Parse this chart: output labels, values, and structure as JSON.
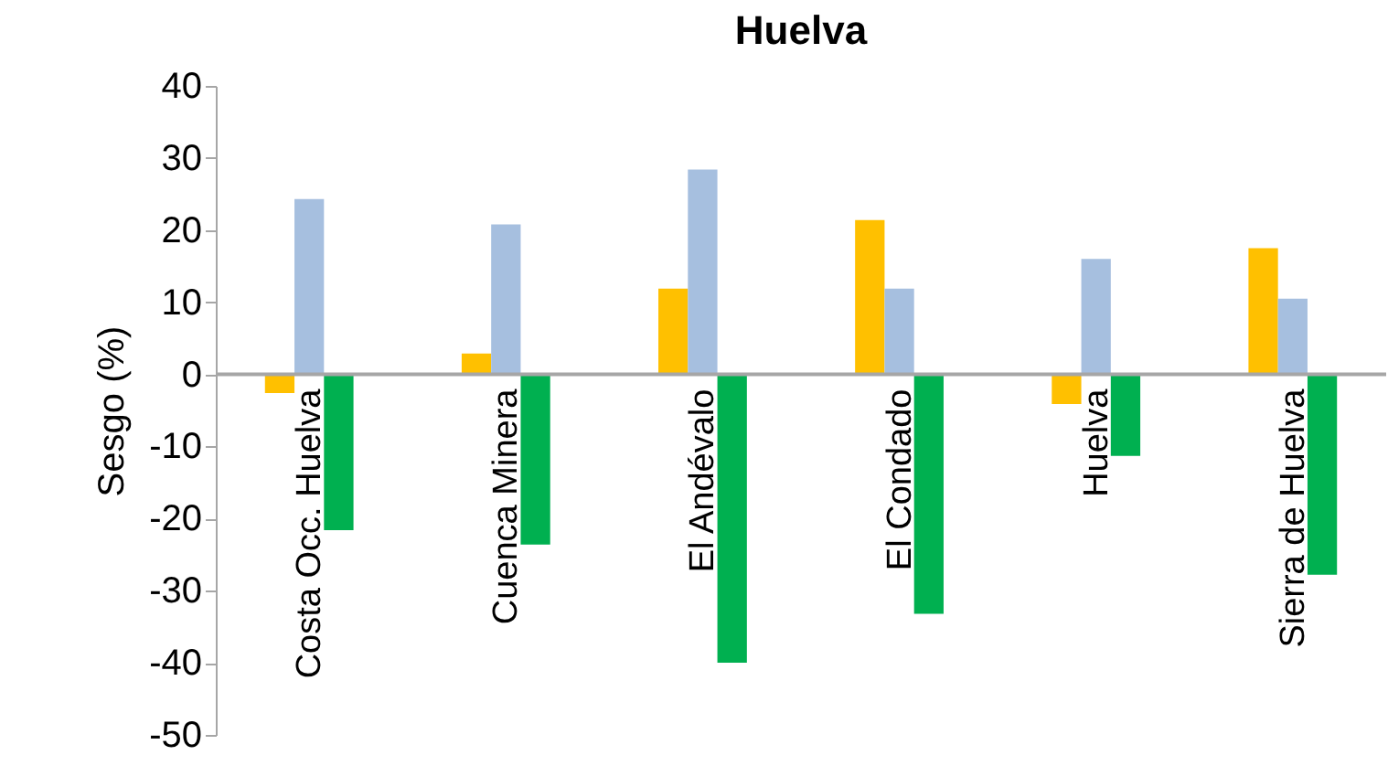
{
  "chart_data": {
    "type": "bar",
    "title": "Huelva",
    "ylabel": "Sesgo (%)",
    "categories": [
      "Costa Occ. Huelva",
      "Cuenca Minera",
      "El Andévalo",
      "El Condado",
      "Huelva",
      "Sierra de Huelva"
    ],
    "series": [
      {
        "color": "#ffc000",
        "values": [
          -2.6,
          2.9,
          11.9,
          21.4,
          -4.1,
          17.5
        ]
      },
      {
        "color": "#a6bfdf",
        "values": [
          24.3,
          20.8,
          28.4,
          11.9,
          16.0,
          10.5
        ]
      },
      {
        "color": "#00b050",
        "values": [
          -21.6,
          -23.6,
          -40.0,
          -33.2,
          -11.3,
          -27.8
        ]
      }
    ],
    "ylim": [
      -50,
      40
    ],
    "yticks": [
      -50,
      -40,
      -30,
      -20,
      -10,
      0,
      10,
      20,
      30,
      40
    ],
    "grid": false,
    "legend": false
  }
}
